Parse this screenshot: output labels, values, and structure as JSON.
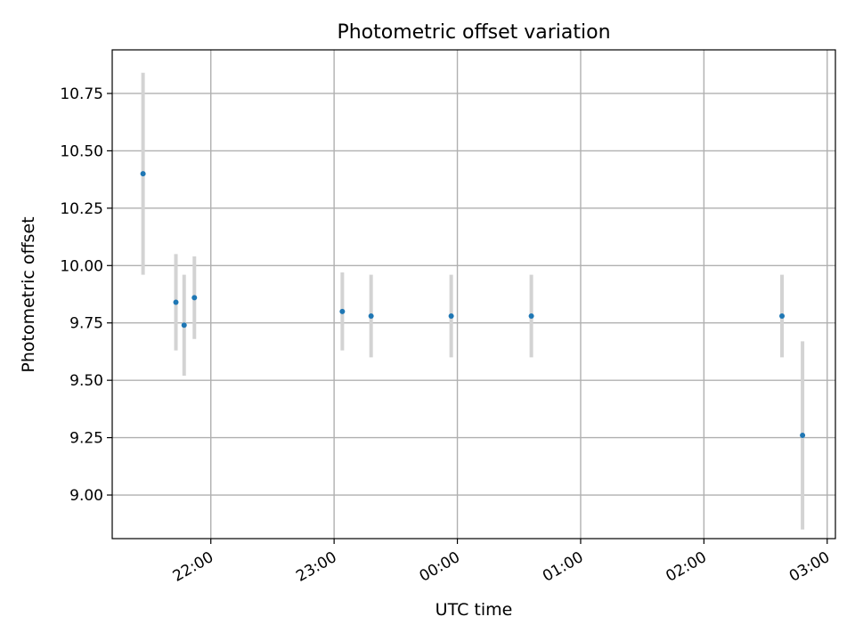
{
  "chart_data": {
    "type": "scatter",
    "title": "Photometric offset variation",
    "xlabel": "UTC time",
    "ylabel": "Photometric offset",
    "x_unit": "UTC time (hours after 21:00)",
    "xlim": [
      "21:12",
      "03:04"
    ],
    "ylim": [
      8.81,
      10.94
    ],
    "x_ticks": [
      "22:00",
      "23:00",
      "00:00",
      "01:00",
      "02:00",
      "03:00"
    ],
    "y_ticks": [
      "9.00",
      "9.25",
      "9.50",
      "9.75",
      "10.00",
      "10.25",
      "10.50",
      "10.75"
    ],
    "y_tick_values": [
      9.0,
      9.25,
      9.5,
      9.75,
      10.0,
      10.25,
      10.5,
      10.75
    ],
    "grid": true,
    "colors": {
      "point": "#1f77b4",
      "errorbar": "#d3d3d3",
      "grid": "#b0b0b0"
    },
    "points": [
      {
        "x": "21:27",
        "y": 10.4,
        "yerr": 0.44
      },
      {
        "x": "21:43",
        "y": 9.84,
        "yerr": 0.21
      },
      {
        "x": "21:47",
        "y": 9.74,
        "yerr": 0.22
      },
      {
        "x": "21:52",
        "y": 9.86,
        "yerr": 0.18
      },
      {
        "x": "23:04",
        "y": 9.8,
        "yerr": 0.17
      },
      {
        "x": "23:18",
        "y": 9.78,
        "yerr": 0.18
      },
      {
        "x": "23:57",
        "y": 9.78,
        "yerr": 0.18
      },
      {
        "x": "00:36",
        "y": 9.78,
        "yerr": 0.18
      },
      {
        "x": "02:38",
        "y": 9.78,
        "yerr": 0.18
      },
      {
        "x": "02:48",
        "y": 9.26,
        "yerr": 0.41
      }
    ]
  }
}
